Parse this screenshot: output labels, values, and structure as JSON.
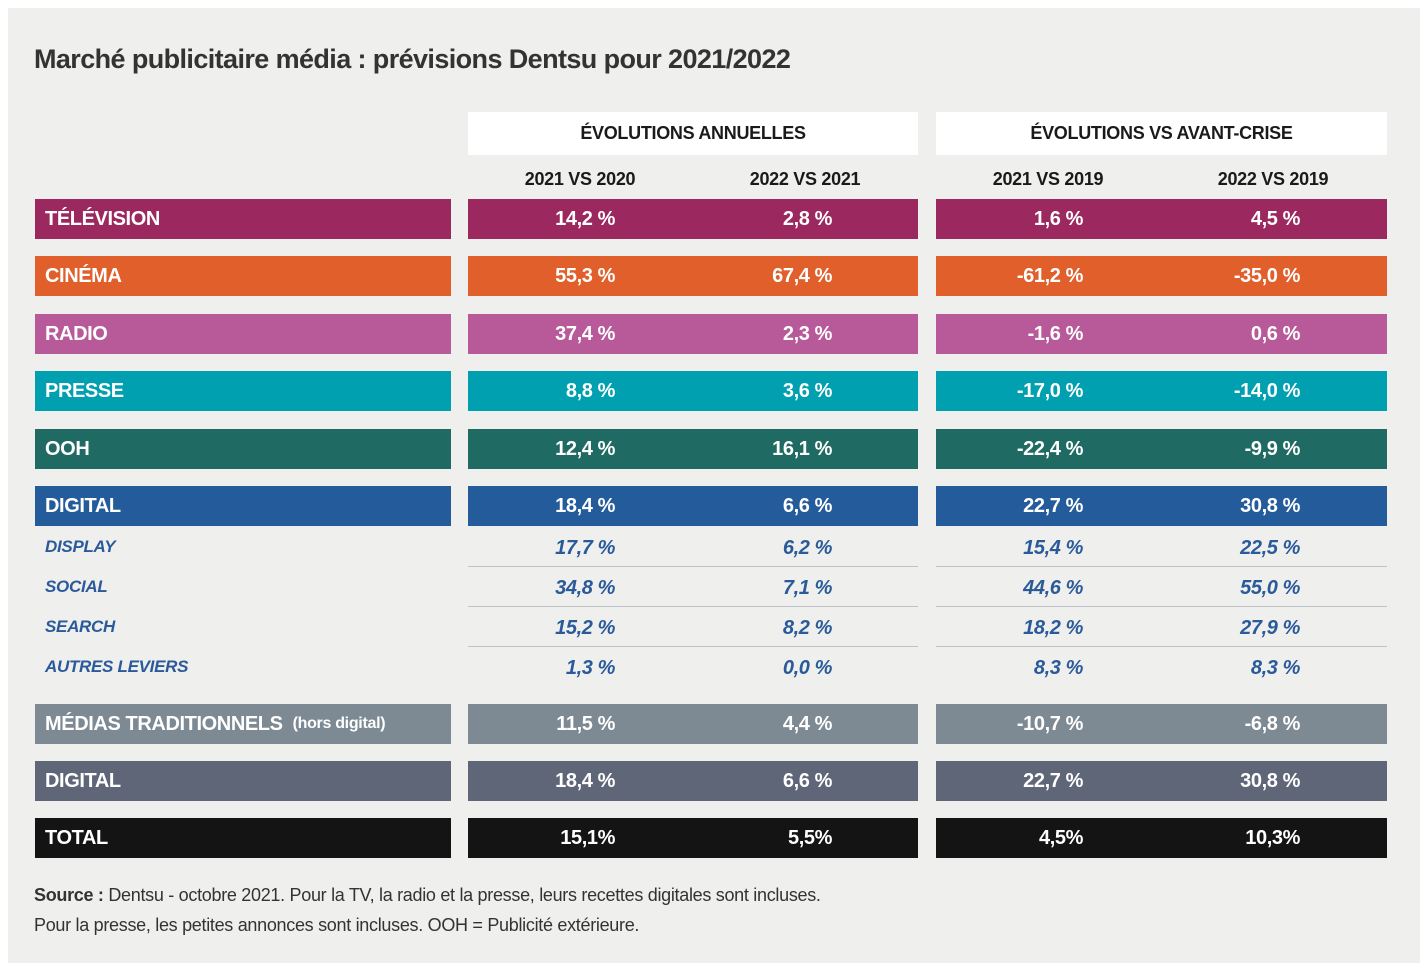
{
  "title": "Marché publicitaire média : prévisions Dentsu pour 2021/2022",
  "chart_data": {
    "type": "table",
    "column_groups": [
      "ÉVOLUTIONS ANNUELLES",
      "ÉVOLUTIONS VS AVANT-CRISE"
    ],
    "columns": [
      "2021 VS 2020",
      "2022 VS 2021",
      "2021 VS 2019",
      "2022 VS 2019"
    ],
    "main_rows": [
      {
        "label": "TÉLÉVISION",
        "color": "#9b285e",
        "values": [
          "14,2 %",
          "2,8 %",
          "1,6 %",
          "4,5 %"
        ]
      },
      {
        "label": "CINÉMA",
        "color": "#e05f2a",
        "values": [
          "55,3 %",
          "67,4 %",
          "-61,2 %",
          "-35,0 %"
        ]
      },
      {
        "label": "RADIO",
        "color": "#b85a9a",
        "values": [
          "37,4 %",
          "2,3 %",
          "-1,6 %",
          "0,6 %"
        ]
      },
      {
        "label": "PRESSE",
        "color": "#00a0b0",
        "values": [
          "8,8 %",
          "3,6 %",
          "-17,0 %",
          "-14,0 %"
        ]
      },
      {
        "label": "OOH",
        "color": "#1f6a62",
        "values": [
          "12,4 %",
          "16,1 %",
          "-22,4 %",
          "-9,9 %"
        ]
      },
      {
        "label": "DIGITAL",
        "color": "#235b9b",
        "values": [
          "18,4 %",
          "6,6 %",
          "22,7 %",
          "30,8 %"
        ]
      }
    ],
    "sub_rows": [
      {
        "label": "DISPLAY",
        "values": [
          "17,7 %",
          "6,2 %",
          "15,4 %",
          "22,5 %"
        ]
      },
      {
        "label": "SOCIAL",
        "values": [
          "34,8 %",
          "7,1 %",
          "44,6 %",
          "55,0 %"
        ]
      },
      {
        "label": "SEARCH",
        "values": [
          "15,2 %",
          "8,2 %",
          "18,2 %",
          "27,9 %"
        ]
      },
      {
        "label": "AUTRES LEVIERS",
        "values": [
          "1,3 %",
          "0,0 %",
          "8,3 %",
          "8,3 %"
        ]
      }
    ],
    "summary_rows": [
      {
        "label": "MÉDIAS TRADITIONNELS",
        "sublabel": "(hors digital)",
        "color": "#7d8a93",
        "values": [
          "11,5 %",
          "4,4 %",
          "-10,7 %",
          "-6,8 %"
        ]
      },
      {
        "label": "DIGITAL",
        "color": "#5f6678",
        "values": [
          "18,4 %",
          "6,6 %",
          "22,7 %",
          "30,8 %"
        ]
      },
      {
        "label": "TOTAL",
        "color": "#141414",
        "values": [
          "15,1%",
          "5,5%",
          "4,5%",
          "10,3%"
        ]
      }
    ],
    "subrow_text_color": "#2a5a9a"
  },
  "source": {
    "label": "Source :",
    "line1": "Dentsu - octobre 2021. Pour la TV, la radio et la presse, leurs recettes digitales sont incluses.",
    "line2": "Pour la presse, les petites annonces sont incluses. OOH = Publicité extérieure."
  }
}
